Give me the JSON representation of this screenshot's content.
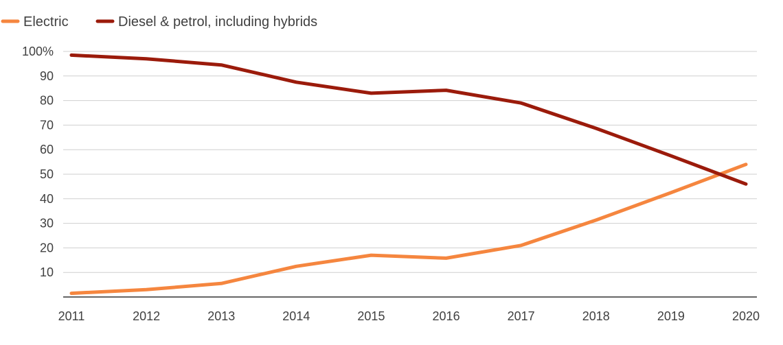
{
  "chart_data": {
    "type": "line",
    "title": "",
    "xlabel": "",
    "ylabel": "",
    "categories": [
      "2011",
      "2012",
      "2013",
      "2014",
      "2015",
      "2016",
      "2017",
      "2018",
      "2019",
      "2020"
    ],
    "ylim": [
      0,
      100
    ],
    "yticks": [
      10,
      20,
      30,
      40,
      50,
      60,
      70,
      80,
      90,
      100
    ],
    "ytick_labels": [
      "10",
      "20",
      "30",
      "40",
      "50",
      "60",
      "70",
      "80",
      "90",
      "100%"
    ],
    "grid": true,
    "legend_position": "top-left",
    "series": [
      {
        "name": "Electric",
        "color": "#f5863f",
        "values": [
          1.5,
          3,
          5.5,
          12.5,
          17,
          15.8,
          21,
          31.3,
          42.5,
          54
        ]
      },
      {
        "name": "Diesel & petrol, including hybrids",
        "color": "#9b1b0b",
        "values": [
          98.5,
          97,
          94.5,
          87.5,
          83,
          84.2,
          79,
          68.7,
          57.5,
          46
        ]
      }
    ]
  }
}
